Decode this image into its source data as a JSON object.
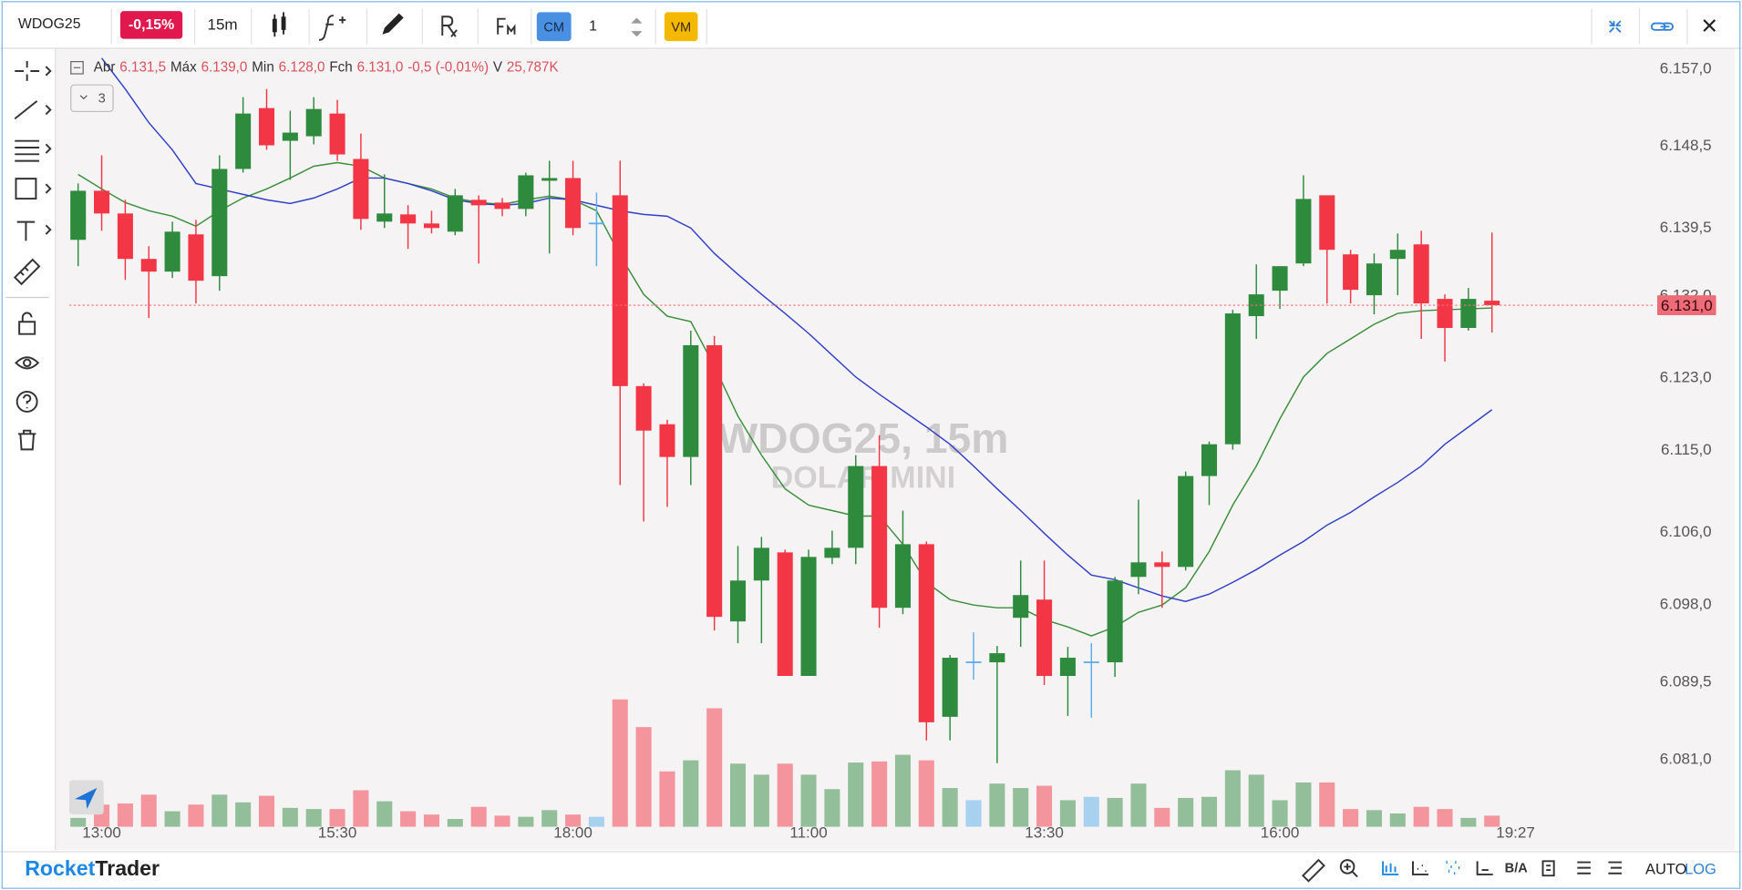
{
  "toolbar": {
    "symbol": "WDOG25",
    "change": "-0,15%",
    "interval": "15m",
    "cm": "CM",
    "quantity": "1",
    "vm": "VM"
  },
  "legend": {
    "open_label": "Abr",
    "open": "6.131,5",
    "high_label": "Máx",
    "high": "6.139,0",
    "low_label": "Min",
    "low": "6.128,0",
    "close_label": "Fch",
    "close": "6.131,0",
    "change": "-0,5 (-0,01%)",
    "volume_label": "V",
    "volume": "25,787K",
    "indicators": "3"
  },
  "watermark": {
    "title": "WDOG25, 15m",
    "subtitle": "DOLAR MINI"
  },
  "footer": {
    "brand_1": "Rocket",
    "brand_2": "Trader",
    "bid_ask": "B/A",
    "auto": "AUTO",
    "log": "LOG"
  },
  "chart_data": {
    "type": "candlestick",
    "categories": [
      null,
      "13:00",
      null,
      null,
      null,
      null,
      null,
      null,
      null,
      null,
      null,
      "15:30",
      null,
      null,
      null,
      null,
      null,
      null,
      null,
      null,
      null,
      "18:00",
      null,
      null,
      null,
      null,
      null,
      null,
      null,
      null,
      null,
      "11:00",
      null,
      null,
      null,
      null,
      null,
      null,
      null,
      null,
      null,
      "13:30",
      null,
      null,
      null,
      null,
      null,
      null,
      null,
      null,
      null,
      "16:00",
      null,
      null,
      null,
      null,
      null,
      null,
      null,
      null,
      null
    ],
    "current_time": "19:27",
    "open": [
      6138.2,
      6143.6,
      6141.1,
      6136.1,
      6134.7,
      6138.8,
      6134.2,
      6146.0,
      6152.7,
      6149.1,
      6149.6,
      6152.1,
      6147.1,
      6140.2,
      6141.0,
      6140.0,
      6139.1,
      6142.6,
      6142.3,
      6141.6,
      6144.7,
      6145.0,
      6140.0,
      6143.1,
      6122.1,
      6117.9,
      6114.3,
      6126.6,
      6096.2,
      6100.7,
      6103.8,
      6090.2,
      6103.2,
      6104.3,
      6113.3,
      6097.7,
      6104.7,
      6085.7,
      6091.7,
      6091.7,
      6096.6,
      6098.6,
      6090.2,
      6091.7,
      6091.7,
      6101.1,
      6102.7,
      6102.2,
      6112.2,
      6115.7,
      6129.8,
      6132.6,
      6135.6,
      6143.1,
      6136.6,
      6132.1,
      6136.1,
      6137.7,
      6131.7,
      6128.5,
      6131.5
    ],
    "high": [
      6144.4,
      6147.5,
      6142.6,
      6137.5,
      6140.2,
      6140.4,
      6147.5,
      6153.9,
      6154.8,
      6152.4,
      6153.9,
      6153.6,
      6149.9,
      6145.4,
      6142.0,
      6141.4,
      6143.8,
      6143.1,
      6142.8,
      6145.6,
      6146.9,
      6146.9,
      6143.4,
      6146.9,
      6122.4,
      6118.4,
      6128.2,
      6127.6,
      6104.5,
      6105.5,
      6104.1,
      6104.1,
      6106.2,
      6114.5,
      6116.7,
      6108.4,
      6105.0,
      6092.5,
      6095.0,
      6093.5,
      6102.9,
      6102.9,
      6093.4,
      6093.8,
      6101.1,
      6109.6,
      6103.9,
      6112.7,
      6116.0,
      6130.5,
      6135.5,
      6135.3,
      6145.3,
      6143.1,
      6137.1,
      6136.7,
      6138.9,
      6139.2,
      6132.2,
      6132.9,
      6139.0
    ],
    "low": [
      6135.3,
      6139.2,
      6133.8,
      6129.6,
      6134.0,
      6131.2,
      6132.6,
      6145.6,
      6148.1,
      6144.8,
      6148.7,
      6146.9,
      6139.3,
      6139.5,
      6137.2,
      6138.9,
      6138.7,
      6135.6,
      6140.8,
      6140.8,
      6136.7,
      6138.7,
      6135.3,
      6111.2,
      6107.2,
      6108.8,
      6111.2,
      6095.2,
      6093.8,
      6093.8,
      6090.2,
      6090.2,
      6102.5,
      6102.5,
      6095.5,
      6097.0,
      6083.1,
      6083.1,
      6089.8,
      6080.6,
      6093.4,
      6089.2,
      6085.8,
      6085.6,
      6090.1,
      6099.2,
      6097.7,
      6101.8,
      6109.0,
      6115.1,
      6127.3,
      6130.6,
      6135.3,
      6131.2,
      6131.2,
      6130.0,
      6132.1,
      6127.3,
      6124.8,
      6128.2,
      6128.0
    ],
    "close": [
      6143.6,
      6141.1,
      6136.1,
      6134.7,
      6139.1,
      6133.7,
      6146.0,
      6152.1,
      6148.6,
      6150.0,
      6152.6,
      6147.6,
      6140.5,
      6141.1,
      6140.0,
      6139.5,
      6143.1,
      6142.0,
      6141.6,
      6145.3,
      6145.0,
      6139.5,
      6140.0,
      6122.1,
      6117.2,
      6114.3,
      6126.6,
      6096.7,
      6100.7,
      6104.3,
      6090.2,
      6103.3,
      6104.3,
      6113.3,
      6097.7,
      6104.7,
      6085.1,
      6092.2,
      6091.7,
      6092.7,
      6099.1,
      6090.2,
      6092.2,
      6091.7,
      6100.7,
      6102.7,
      6102.2,
      6112.2,
      6115.7,
      6130.1,
      6132.2,
      6135.3,
      6142.7,
      6137.1,
      6132.7,
      6135.6,
      6137.1,
      6131.2,
      6128.5,
      6131.7,
      6131.0
    ],
    "volume": [
      20.6,
      51.6,
      54.2,
      74.8,
      36.1,
      51.6,
      74.8,
      56.8,
      72.2,
      43.9,
      41.3,
      41.3,
      85.1,
      59.3,
      36.1,
      28.4,
      18.1,
      46.4,
      25.8,
      23.2,
      38.7,
      28.4,
      23.2,
      296.7,
      232.2,
      129,
      154.8,
      276.1,
      147.1,
      121.3,
      147.1,
      121.3,
      87.7,
      149.6,
      152.2,
      167.7,
      154.8,
      90.3,
      61.9,
      100.6,
      90.3,
      95.5,
      61.9,
      69.7,
      67.1,
      100.6,
      43.9,
      67.1,
      69.7,
      131.6,
      121.3,
      61.9,
      103.2,
      103.2,
      41.3,
      38.7,
      31,
      46.4,
      41.3,
      20.6,
      25.787
    ],
    "vlim": [
      0,
      300
    ],
    "moving_averages": [
      {
        "color": "#3a8f3a",
        "values": [
          6145.4,
          6143.8,
          6142.3,
          6141.4,
          6140.8,
          6139.7,
          6141.4,
          6142.8,
          6143.8,
          6145.0,
          6146.3,
          6146.7,
          6146.3,
          6145.0,
          6144.4,
          6143.8,
          6142.8,
          6142.3,
          6142.1,
          6142.6,
          6143.0,
          6142.6,
          6141.4,
          6136.5,
          6132.2,
          6129.8,
          6129.2,
          6124.3,
          6118.8,
          6114.5,
          6110.8,
          6109.0,
          6108.4,
          6107.8,
          6107.8,
          6104.7,
          6100.5,
          6098.6,
          6098.0,
          6097.7,
          6097.7,
          6096.4,
          6095.6,
          6094.6,
          6095.6,
          6097.2,
          6098.0,
          6099.9,
          6103.9,
          6109.0,
          6113.3,
          6118.5,
          6123.1,
          6125.7,
          6127.3,
          6128.9,
          6130.1,
          6130.4,
          6130.5,
          6130.6,
          6130.7
        ]
      },
      {
        "color": "#3040c8",
        "values": [
          null,
          6158.2,
          6154.8,
          6151.1,
          6148.1,
          6144.4,
          6143.8,
          6143.2,
          6142.6,
          6142.2,
          6142.8,
          6143.8,
          6145.0,
          6145.0,
          6144.4,
          6143.6,
          6142.6,
          6142.2,
          6142.0,
          6142.2,
          6142.8,
          6142.6,
          6142.0,
          6141.4,
          6141.0,
          6140.8,
          6139.5,
          6136.7,
          6134.4,
          6132.2,
          6130.1,
          6127.9,
          6125.5,
          6123.1,
          6121.2,
          6119.4,
          6117.6,
          6115.7,
          6113.3,
          6110.8,
          6108.4,
          6105.9,
          6103.5,
          6101.3,
          6100.8,
          6099.9,
          6099.0,
          6098.4,
          6099.2,
          6100.5,
          6101.9,
          6103.5,
          6105.0,
          6106.8,
          6108.2,
          6109.9,
          6111.5,
          6113.3,
          6115.7,
          6117.6,
          6119.5
        ]
      }
    ],
    "up_color": "#2e8b3e",
    "down_color": "#f23645",
    "unchanged_color": "#5aaeea",
    "ylim": [
      6073.6,
      6159.1
    ],
    "yticks": [
      {
        "value": 6081,
        "label": "6.081,0"
      },
      {
        "value": 6089.5,
        "label": "6.089,5"
      },
      {
        "value": 6098,
        "label": "6.098,0"
      },
      {
        "value": 6106,
        "label": "6.106,0"
      },
      {
        "value": 6115,
        "label": "6.115,0"
      },
      {
        "value": 6123,
        "label": "6.123,0"
      },
      {
        "value": 6132,
        "label": "6.132,0"
      },
      {
        "value": 6139.5,
        "label": "6.139,5"
      },
      {
        "value": 6148.5,
        "label": "6.148,5"
      },
      {
        "value": 6157,
        "label": "6.157,0"
      }
    ],
    "last_price": {
      "value": 6131,
      "label": "6.131,0"
    },
    "grid": false
  }
}
